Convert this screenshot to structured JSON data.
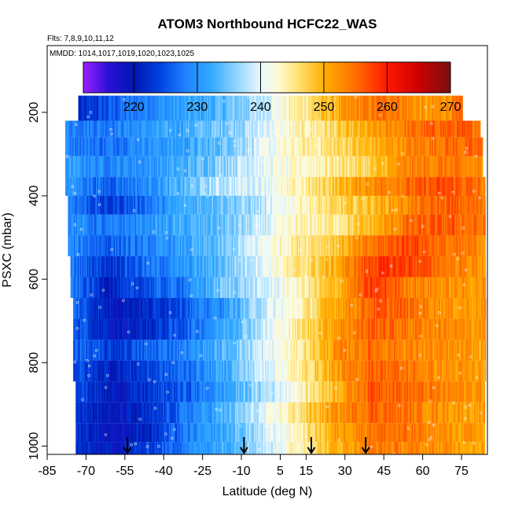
{
  "chart_data": {
    "type": "heatmap",
    "title": "ATOM3 Northbound HCFC22_WAS",
    "subtitle_flights": "Flts: 7,8,9,10,11,12",
    "subtitle_dates": "MMDD: 1014,1017,1019,1020,1023,1025",
    "xlabel": "Latitude (deg N)",
    "ylabel": "PSXC (mbar)",
    "xlim": [
      -85,
      85
    ],
    "ylim": [
      1020,
      40
    ],
    "y_inverted": true,
    "x_ticks": [
      "-85",
      "-70",
      "-55",
      "-40",
      "-25",
      "-10",
      "5",
      "15",
      "30",
      "45",
      "60",
      "75"
    ],
    "x_tick_values": [
      -85,
      -70,
      -55,
      -40,
      -25,
      -10,
      5,
      15,
      30,
      45,
      60,
      75
    ],
    "y_ticks": [
      "200",
      "400",
      "600",
      "800",
      "1000"
    ],
    "y_tick_values": [
      200,
      400,
      600,
      800,
      1000
    ],
    "colorbar": {
      "ticks": [
        "220",
        "230",
        "240",
        "250",
        "260",
        "270"
      ],
      "tick_values": [
        220,
        230,
        240,
        250,
        260,
        270
      ],
      "range": [
        212,
        270
      ],
      "stops": [
        {
          "v": 212,
          "c": "#9a20ff"
        },
        {
          "v": 216,
          "c": "#2a10d8"
        },
        {
          "v": 220,
          "c": "#0018b0"
        },
        {
          "v": 224,
          "c": "#0040e0"
        },
        {
          "v": 228,
          "c": "#1e80ff"
        },
        {
          "v": 232,
          "c": "#30a8ff"
        },
        {
          "v": 236,
          "c": "#8cd2ff"
        },
        {
          "v": 240,
          "c": "#eaf8ff"
        },
        {
          "v": 243,
          "c": "#fffad0"
        },
        {
          "v": 246,
          "c": "#ffe070"
        },
        {
          "v": 250,
          "c": "#ffb000"
        },
        {
          "v": 255,
          "c": "#ff6e00"
        },
        {
          "v": 260,
          "c": "#ff1800"
        },
        {
          "v": 265,
          "c": "#cc0000"
        },
        {
          "v": 270,
          "c": "#7a1010"
        }
      ]
    },
    "arrow_latitudes": [
      -54,
      -9,
      17,
      38
    ],
    "bands": [
      {
        "p": 200,
        "lat0": -73,
        "lat1": 75,
        "v": [
          221,
          226,
          229,
          231,
          233,
          237,
          243,
          248,
          253,
          255,
          251,
          254
        ]
      },
      {
        "p": 240,
        "lat0": -78,
        "lat1": 82,
        "v": [
          229,
          228,
          230,
          232,
          235,
          238,
          243,
          246,
          250,
          254,
          256,
          255
        ]
      },
      {
        "p": 280,
        "lat0": -78,
        "lat1": 83,
        "v": [
          229,
          227,
          230,
          231,
          234,
          239,
          243,
          246,
          249,
          253,
          255,
          255
        ]
      },
      {
        "p": 330,
        "lat0": -78,
        "lat1": 83,
        "v": [
          231,
          229,
          230,
          232,
          236,
          240,
          242,
          245,
          247,
          253,
          254,
          252
        ]
      },
      {
        "p": 380,
        "lat0": -78,
        "lat1": 84,
        "v": [
          231,
          226,
          229,
          233,
          238,
          240,
          243,
          248,
          253,
          255,
          257,
          254
        ]
      },
      {
        "p": 420,
        "lat0": -77,
        "lat1": 84,
        "v": [
          229,
          223,
          227,
          232,
          235,
          237,
          243,
          246,
          249,
          253,
          256,
          254
        ]
      },
      {
        "p": 470,
        "lat0": -77,
        "lat1": 84,
        "v": [
          230,
          227,
          230,
          232,
          234,
          238,
          243,
          245,
          249,
          255,
          256,
          254
        ]
      },
      {
        "p": 520,
        "lat0": -77,
        "lat1": 84,
        "v": [
          229,
          226,
          228,
          231,
          234,
          240,
          245,
          248,
          254,
          258,
          254,
          253
        ]
      },
      {
        "p": 570,
        "lat0": -76,
        "lat1": 84,
        "v": [
          228,
          223,
          227,
          230,
          234,
          240,
          245,
          250,
          258,
          258,
          254,
          252
        ]
      },
      {
        "p": 620,
        "lat0": -76,
        "lat1": 84,
        "v": [
          228,
          221,
          225,
          228,
          235,
          238,
          243,
          249,
          258,
          254,
          252,
          252
        ]
      },
      {
        "p": 670,
        "lat0": -75,
        "lat1": 84,
        "v": [
          227,
          220,
          222,
          226,
          230,
          238,
          243,
          251,
          256,
          255,
          252,
          252
        ]
      },
      {
        "p": 720,
        "lat0": -75,
        "lat1": 84,
        "v": [
          226,
          220,
          222,
          226,
          232,
          238,
          245,
          252,
          256,
          254,
          253,
          251
        ]
      },
      {
        "p": 770,
        "lat0": -75,
        "lat1": 84,
        "v": [
          227,
          223,
          226,
          229,
          233,
          239,
          244,
          252,
          255,
          253,
          252,
          251
        ]
      },
      {
        "p": 820,
        "lat0": -75,
        "lat1": 84,
        "v": [
          225,
          221,
          224,
          227,
          232,
          239,
          244,
          251,
          256,
          254,
          252,
          251
        ]
      },
      {
        "p": 870,
        "lat0": -74,
        "lat1": 84,
        "v": [
          225,
          220,
          223,
          226,
          231,
          237,
          243,
          250,
          257,
          255,
          253,
          252
        ]
      },
      {
        "p": 920,
        "lat0": -74,
        "lat1": 84,
        "v": [
          224,
          219,
          222,
          228,
          233,
          239,
          246,
          252,
          256,
          254,
          252,
          251
        ]
      },
      {
        "p": 970,
        "lat0": -74,
        "lat1": 84,
        "v": [
          223,
          219,
          222,
          228,
          232,
          238,
          244,
          251,
          255,
          254,
          252,
          251
        ]
      },
      {
        "p": 1010,
        "lat0": -74,
        "lat1": 84,
        "v": [
          222,
          220,
          224,
          229,
          233,
          238,
          244,
          250,
          254,
          253,
          252,
          251
        ]
      }
    ]
  }
}
